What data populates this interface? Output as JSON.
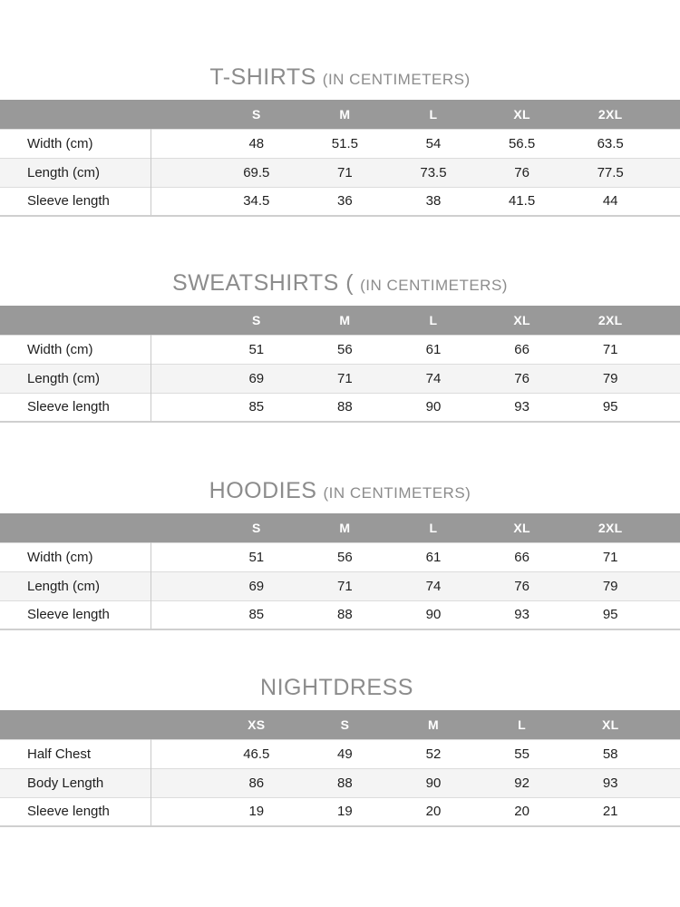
{
  "colors": {
    "page_bg": "#ffffff",
    "header_bar_bg": "#999999",
    "header_text": "#ffffff",
    "title_text": "#8c8c8c",
    "row_stripe": "#f4f4f4",
    "row_line": "#dcdcdc",
    "column_divider": "#c9c9c9",
    "table_bottom_line": "#cfcfcf",
    "cell_text": "#1f1f1f"
  },
  "tables": [
    {
      "title": "T-SHIRTS",
      "title_suffix": "(IN CENTIMETERS)",
      "columns": [
        "S",
        "M",
        "L",
        "XL",
        "2XL"
      ],
      "rows": [
        {
          "label": "Width (cm)",
          "values": [
            "48",
            "51.5",
            "54",
            "56.5",
            "63.5"
          ]
        },
        {
          "label": "Length (cm)",
          "values": [
            "69.5",
            "71",
            "73.5",
            "76",
            "77.5"
          ]
        },
        {
          "label": "Sleeve length",
          "values": [
            "34.5",
            "36",
            "38",
            "41.5",
            "44"
          ]
        }
      ]
    },
    {
      "title": "SWEATSHIRTS (",
      "title_suffix": "(IN CENTIMETERS)",
      "columns": [
        "S",
        "M",
        "L",
        "XL",
        "2XL"
      ],
      "rows": [
        {
          "label": "Width (cm)",
          "values": [
            "51",
            "56",
            "61",
            "66",
            "71"
          ]
        },
        {
          "label": "Length (cm)",
          "values": [
            "69",
            "71",
            "74",
            "76",
            "79"
          ]
        },
        {
          "label": "Sleeve length",
          "values": [
            "85",
            "88",
            "90",
            "93",
            "95"
          ]
        }
      ]
    },
    {
      "title": "HOODIES",
      "title_suffix": "(IN CENTIMETERS)",
      "columns": [
        "S",
        "M",
        "L",
        "XL",
        "2XL"
      ],
      "rows": [
        {
          "label": "Width (cm)",
          "values": [
            "51",
            "56",
            "61",
            "66",
            "71"
          ]
        },
        {
          "label": "Length (cm)",
          "values": [
            "69",
            "71",
            "74",
            "76",
            "79"
          ]
        },
        {
          "label": "Sleeve length",
          "values": [
            "85",
            "88",
            "90",
            "93",
            "95"
          ]
        }
      ]
    },
    {
      "title": "NIGHTDRESS",
      "title_suffix": "",
      "columns": [
        "XS",
        "S",
        "M",
        "L",
        "XL"
      ],
      "rows": [
        {
          "label": "Half Chest",
          "values": [
            "46.5",
            "49",
            "52",
            "55",
            "58"
          ]
        },
        {
          "label": "Body Length",
          "values": [
            "86",
            "88",
            "90",
            "92",
            "93"
          ]
        },
        {
          "label": "Sleeve length",
          "values": [
            "19",
            "19",
            "20",
            "20",
            "21"
          ]
        }
      ]
    }
  ]
}
